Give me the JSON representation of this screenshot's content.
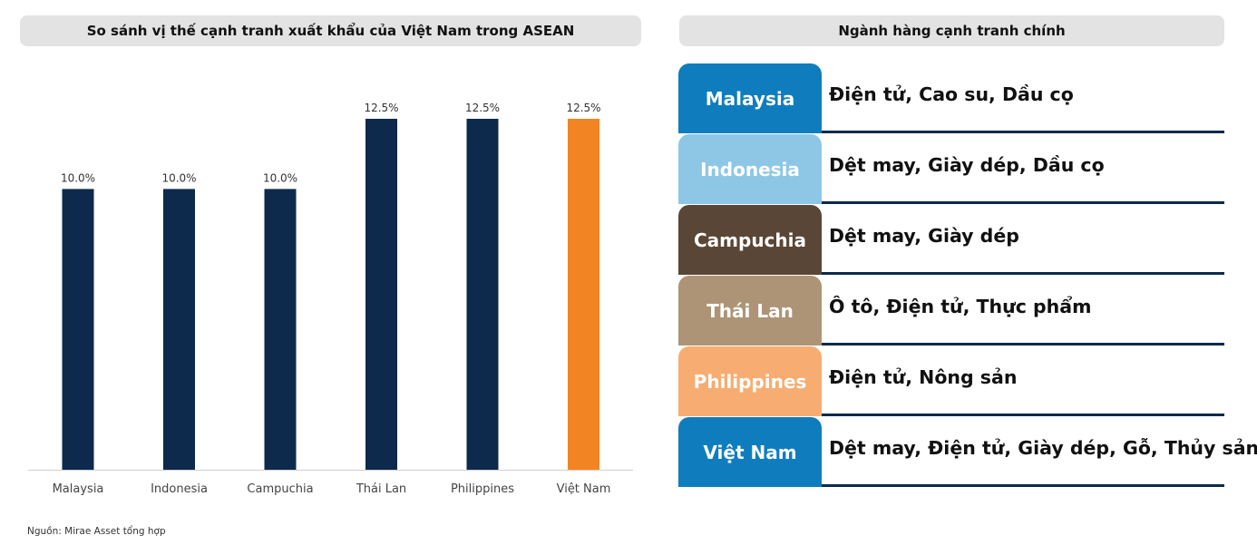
{
  "left_panel": {
    "title": "So sánh vị thế cạnh tranh xuất khẩu của Việt Nam trong ASEAN"
  },
  "right_panel": {
    "title": "Ngành hàng cạnh tranh chính",
    "rows": [
      {
        "country": "Malaysia",
        "industries": "Điện tử, Cao su, Dầu cọ",
        "color": "#0f7dbd"
      },
      {
        "country": "Indonesia",
        "industries": "Dệt may, Giày dép, Dầu cọ",
        "color": "#8ec7e6"
      },
      {
        "country": "Campuchia",
        "industries": "Dệt may, Giày dép",
        "color": "#5a4636"
      },
      {
        "country": "Thái Lan",
        "industries": "Ô tô, Điện tử, Thực phẩm",
        "color": "#ad9476"
      },
      {
        "country": "Philippines",
        "industries": "Điện tử, Nông sản",
        "color": "#f7ad72"
      },
      {
        "country": "Việt Nam",
        "industries": "Dệt may, Điện tử, Giày dép, Gỗ, Thủy sản",
        "color": "#0f7dbd"
      }
    ]
  },
  "chart_data": {
    "type": "bar",
    "categories": [
      "Malaysia",
      "Indonesia",
      "Campuchia",
      "Thái Lan",
      "Philippines",
      "Việt Nam"
    ],
    "values": [
      10.0,
      10.0,
      10.0,
      12.5,
      12.5,
      12.5
    ],
    "value_labels": [
      "10.0%",
      "10.0%",
      "10.0%",
      "12.5%",
      "12.5%",
      "12.5%"
    ],
    "bar_colors": [
      "#0d2a4c",
      "#0d2a4c",
      "#0d2a4c",
      "#0d2a4c",
      "#0d2a4c",
      "#f28424"
    ],
    "ylim": [
      0,
      15
    ],
    "grid": false,
    "title": "So sánh vị thế cạnh tranh xuất khẩu của Việt Nam trong ASEAN",
    "xlabel": "",
    "ylabel": ""
  },
  "source": "Nguồn: Mirae Asset tổng hợp"
}
